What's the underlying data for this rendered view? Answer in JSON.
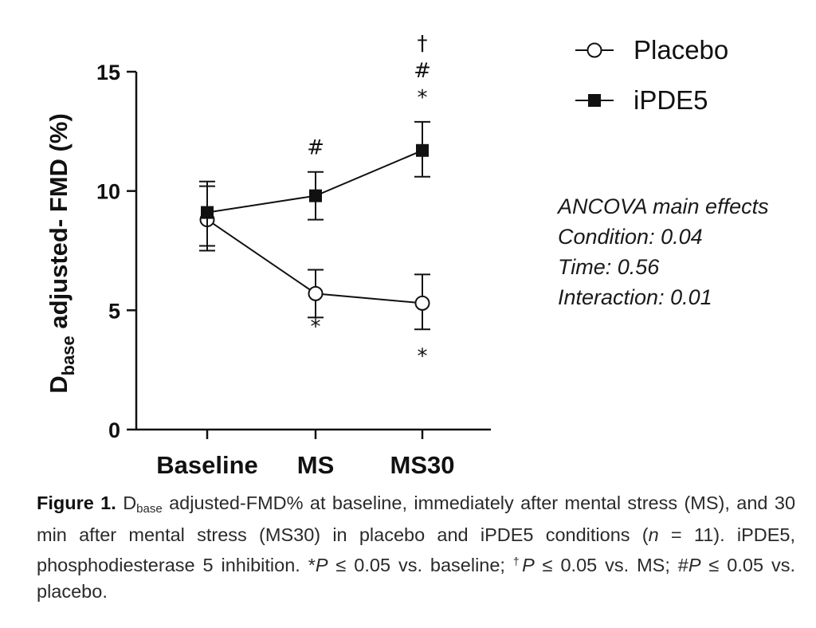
{
  "chart_data": {
    "type": "line",
    "categories": [
      "Baseline",
      "MS",
      "MS30"
    ],
    "ylabel": {
      "main": "D",
      "subscript": "base",
      "rest": " adjusted- FMD (%)"
    },
    "ylim": [
      0,
      15
    ],
    "yticks": [
      "0",
      "5",
      "10",
      "15"
    ],
    "ytick_values": [
      0,
      5,
      10,
      15
    ],
    "series": [
      {
        "name": "Placebo",
        "marker": "open-circle",
        "values": [
          8.8,
          5.7,
          5.3
        ],
        "err_low": [
          7.5,
          4.7,
          4.2
        ],
        "err_high": [
          10.2,
          6.7,
          6.5
        ]
      },
      {
        "name": "iPDE5",
        "marker": "filled-square",
        "values": [
          9.1,
          9.8,
          11.7
        ],
        "err_low": [
          7.7,
          8.8,
          10.6
        ],
        "err_high": [
          10.4,
          10.8,
          12.9
        ]
      }
    ],
    "annotations": [
      {
        "category": "MS",
        "series": "iPDE5",
        "position": "above",
        "symbols": [
          "#"
        ]
      },
      {
        "category": "MS30",
        "series": "iPDE5",
        "position": "above",
        "symbols": [
          "*",
          "#",
          "†"
        ]
      },
      {
        "category": "MS",
        "series": "Placebo",
        "position": "below",
        "symbols": [
          "*"
        ]
      },
      {
        "category": "MS30",
        "series": "Placebo",
        "position": "below",
        "symbols": [
          "*"
        ]
      }
    ],
    "legend": {
      "placement": "top-right",
      "labels": [
        "Placebo",
        "iPDE5"
      ]
    },
    "stats_note": [
      "ANCOVA main effects",
      "Condition: 0.04",
      "Time: 0.56",
      "Interaction: 0.01"
    ]
  },
  "caption": {
    "label": "Figure 1.",
    "d": "D",
    "d_sub": "base",
    "t1": " adjusted-FMD% at baseline, immediately after mental stress (MS), and 30 min after mental stress (MS30) in placebo and iPDE5 conditions (",
    "n": "n",
    "t2": " = 11). iPDE5, phosphodiesterase 5 inhibition. *",
    "p1": "P",
    "t3": " ≤ 0.05 vs. baseline; ",
    "dagger": "†",
    "p2": "P",
    "t4": " ≤ 0.05 vs. MS; #",
    "p3": "P",
    "t5": " ≤ 0.05 vs. placebo."
  }
}
